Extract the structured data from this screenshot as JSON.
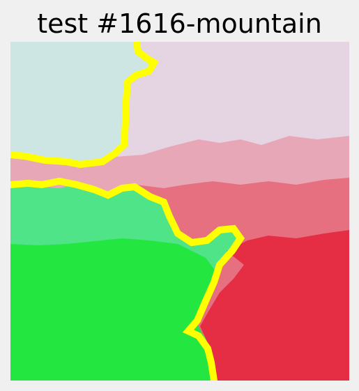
{
  "title": "test #1616-mountain",
  "colors": {
    "background": "#f0f0f0",
    "top_left_region": "#cde6e4",
    "top_right_region": "#e5d4e2",
    "pink_band": "#e8a7b7",
    "rose_region": "#e6707f",
    "light_green_region": "#4ee487",
    "green_region": "#24e640",
    "red_region": "#e52d43",
    "boundary": "#ffff00"
  }
}
